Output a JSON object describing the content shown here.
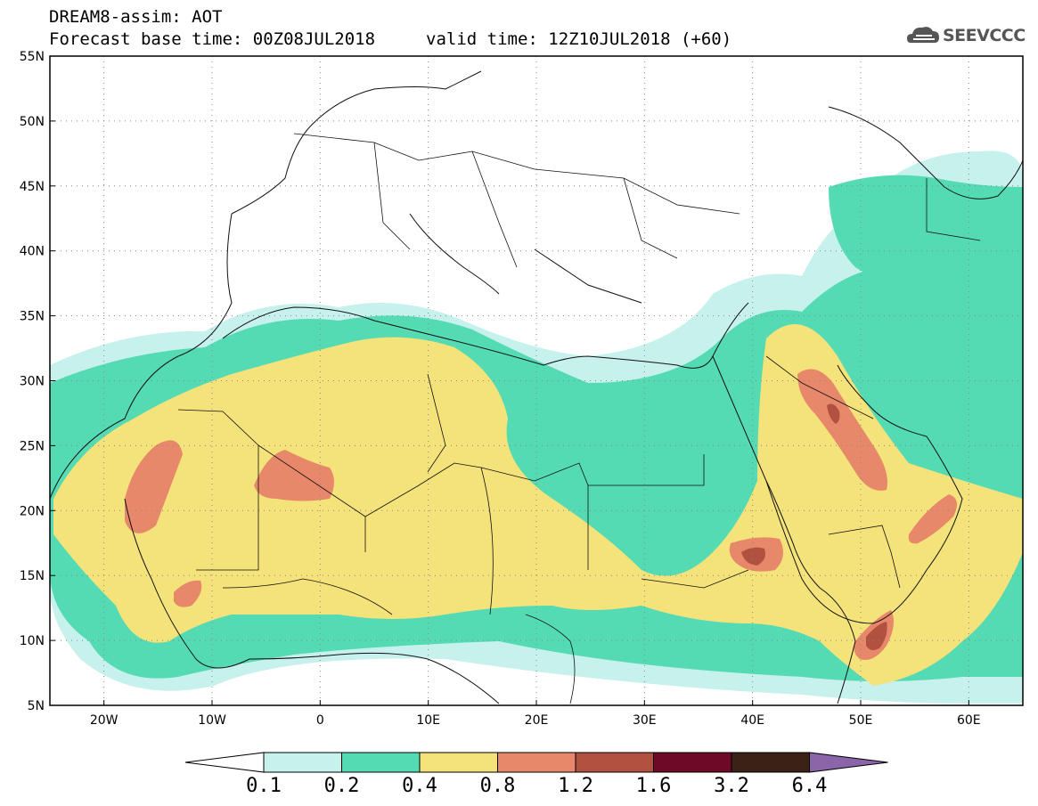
{
  "header": {
    "line1": "DREAM8-assim: AOT",
    "line2": "Forecast base time: 00Z08JUL2018",
    "line3": "valid time: 12Z10JUL2018 (+60)"
  },
  "logo": {
    "text": "SEEVCCC",
    "icon": "cloud-logo-icon"
  },
  "map": {
    "lon_range": [
      -25,
      65
    ],
    "lat_range": [
      5,
      55
    ],
    "projection": "equirectangular",
    "grid": true,
    "lat_labels": [
      "55N",
      "50N",
      "45N",
      "40N",
      "35N",
      "30N",
      "25N",
      "20N",
      "15N",
      "10N",
      "5N"
    ],
    "lon_labels": [
      "20W",
      "10W",
      "0",
      "10E",
      "20E",
      "30E",
      "40E",
      "50E",
      "60E"
    ]
  },
  "colorbar": {
    "levels": [
      "0.1",
      "0.2",
      "0.4",
      "0.8",
      "1.2",
      "1.6",
      "3.2",
      "6.4"
    ],
    "colors": [
      "#c6f1ec",
      "#55dbb3",
      "#f4e27a",
      "#e8886a",
      "#b0523f",
      "#6e0a27",
      "#3a2216",
      "#8a66a8"
    ],
    "open_low_color": "#ffffff"
  }
}
